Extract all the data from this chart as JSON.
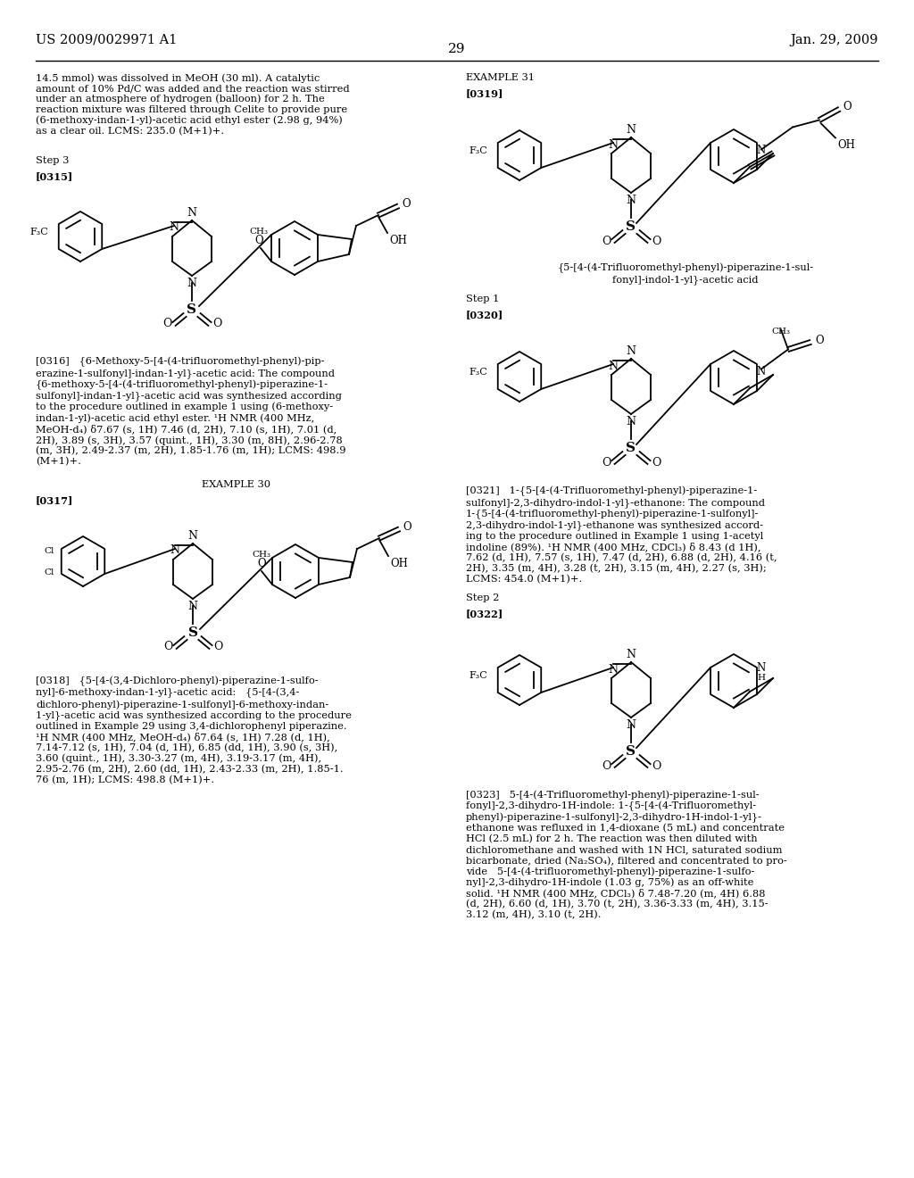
{
  "page_number": "29",
  "patent_number": "US 2009/0029971 A1",
  "patent_date": "Jan. 29, 2009",
  "bg": "#ffffff",
  "body_fs": 8.2,
  "header_fs": 10.5
}
